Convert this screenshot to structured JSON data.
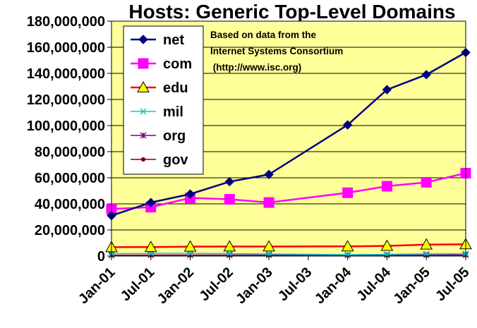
{
  "chart_data": {
    "type": "line",
    "title": "Hosts: Generic Top-Level Domains",
    "annotation": [
      "Based on data from the",
      "Internet Systems Consortium",
      " (http://www.isc.org)"
    ],
    "xlabel": "",
    "ylabel": "",
    "x": [
      "Jan-01",
      "Jul-01",
      "Jan-02",
      "Jul-02",
      "Jan-03",
      "Jul-03",
      "Jan-04",
      "Jul-04",
      "Jan-05",
      "Jul-05"
    ],
    "x_tick_labels": [
      "Jan-01",
      "Jul-01",
      "Jan-02",
      "Jul-02",
      "Jan-03",
      "Jul-03",
      "Jan-04",
      "Jul-04",
      "Jan-05",
      "Jul-05"
    ],
    "y_tick_labels": [
      "0",
      "20,000,000",
      "40,000,000",
      "60,000,000",
      "80,000,000",
      "100,000,000",
      "120,000,000",
      "140,000,000",
      "160,000,000",
      "180,000,000"
    ],
    "ylim": [
      0,
      180000000
    ],
    "grid": true,
    "legend_position": "top-left",
    "plot_background": "#FFFF99",
    "series": [
      {
        "name": "net",
        "color": "#000080",
        "marker": "diamond",
        "points": [
          [
            "Jan-01",
            31000000
          ],
          [
            "Jul-01",
            41000000
          ],
          [
            "Jan-02",
            47500000
          ],
          [
            "Jul-02",
            57000000
          ],
          [
            "Jan-03",
            62500000
          ],
          [
            "Jan-04",
            100500000
          ],
          [
            "Jul-04",
            127500000
          ],
          [
            "Jan-05",
            139000000
          ],
          [
            "Jul-05",
            156000000
          ]
        ]
      },
      {
        "name": "com",
        "color": "#FF00FF",
        "marker": "square",
        "points": [
          [
            "Jan-01",
            36000000
          ],
          [
            "Jul-01",
            37500000
          ],
          [
            "Jan-02",
            44500000
          ],
          [
            "Jul-02",
            43500000
          ],
          [
            "Jan-03",
            41000000
          ],
          [
            "Jan-04",
            48500000
          ],
          [
            "Jul-04",
            53500000
          ],
          [
            "Jan-05",
            56500000
          ],
          [
            "Jul-05",
            63500000
          ]
        ]
      },
      {
        "name": "edu",
        "color": "#FF0000",
        "marker": "triangle",
        "marker_fill": "#FFFF00",
        "points": [
          [
            "Jan-01",
            6800000
          ],
          [
            "Jul-01",
            6900000
          ],
          [
            "Jan-02",
            7200000
          ],
          [
            "Jul-02",
            7300000
          ],
          [
            "Jan-03",
            7300000
          ],
          [
            "Jan-04",
            7400000
          ],
          [
            "Jul-04",
            7800000
          ],
          [
            "Jan-05",
            8800000
          ],
          [
            "Jul-05",
            9000000
          ]
        ]
      },
      {
        "name": "mil",
        "color": "#00CCCC",
        "marker": "x",
        "points": [
          [
            "Jan-01",
            1900000
          ],
          [
            "Jul-01",
            2000000
          ],
          [
            "Jan-02",
            2100000
          ],
          [
            "Jul-02",
            1900000
          ],
          [
            "Jan-03",
            1600000
          ],
          [
            "Jan-04",
            1100000
          ],
          [
            "Jul-04",
            1300000
          ],
          [
            "Jan-05",
            1700000
          ],
          [
            "Jul-05",
            1800000
          ]
        ]
      },
      {
        "name": "org",
        "color": "#800080",
        "marker": "star",
        "points": [
          [
            "Jan-01",
            700000
          ],
          [
            "Jul-01",
            800000
          ],
          [
            "Jan-02",
            800000
          ],
          [
            "Jul-02",
            800000
          ],
          [
            "Jan-03",
            800000
          ],
          [
            "Jan-04",
            700000
          ],
          [
            "Jul-04",
            800000
          ],
          [
            "Jan-05",
            800000
          ],
          [
            "Jul-05",
            900000
          ]
        ]
      },
      {
        "name": "gov",
        "color": "#800000",
        "marker": "circle",
        "points": [
          [
            "Jan-01",
            700000
          ],
          [
            "Jul-01",
            700000
          ],
          [
            "Jan-02",
            700000
          ],
          [
            "Jul-02",
            700000
          ],
          [
            "Jan-03",
            700000
          ],
          [
            "Jan-04",
            500000
          ],
          [
            "Jul-04",
            500000
          ],
          [
            "Jan-05",
            600000
          ],
          [
            "Jul-05",
            600000
          ]
        ]
      }
    ]
  }
}
